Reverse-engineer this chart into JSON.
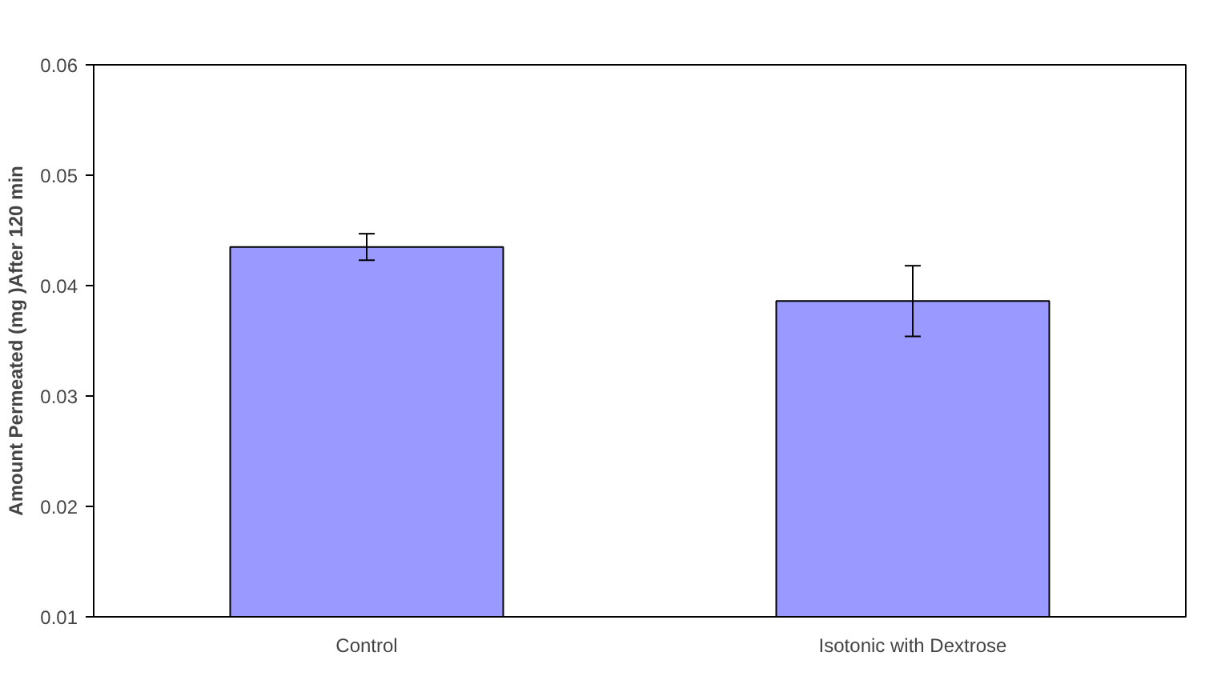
{
  "chart_data": {
    "type": "bar",
    "ylabel": "Amount Permeated (mg )After 120 min",
    "categories": [
      "Control",
      "Isotonic with Dextrose"
    ],
    "values": [
      0.0435,
      0.0386
    ],
    "errors": [
      0.0012,
      0.0032
    ],
    "color": "#9999ff",
    "ylim": [
      0.01,
      0.06
    ],
    "yticks": [
      0.01,
      0.02,
      0.03,
      0.04,
      0.05,
      0.06
    ],
    "grid": false
  }
}
